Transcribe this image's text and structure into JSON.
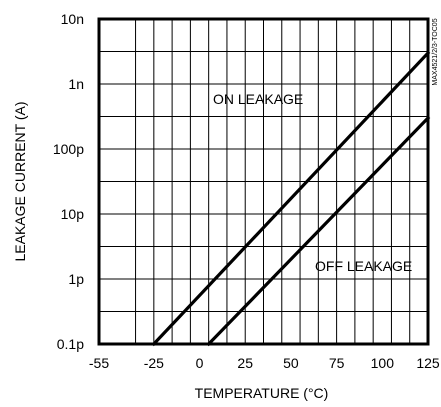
{
  "chart_data": {
    "type": "line",
    "xlabel": "TEMPERATURE (°C)",
    "ylabel": "LEAKAGE CURRENT (A)",
    "xlim": [
      -55,
      125
    ],
    "ylim": [
      1e-13,
      1e-08
    ],
    "yscale": "log",
    "grid": true,
    "x_ticks": [
      -55,
      -25,
      0,
      25,
      50,
      75,
      100,
      125
    ],
    "x_tick_labels": [
      "-55",
      "-25",
      "0",
      "25",
      "50",
      "75",
      "100",
      "125"
    ],
    "y_ticks": [
      1e-13,
      1e-12,
      1e-11,
      1e-10,
      1e-09,
      1e-08
    ],
    "y_tick_labels": [
      "0.1p",
      "1p",
      "10p",
      "100p",
      "1n",
      "10n"
    ],
    "series": [
      {
        "name": "ON LEAKAGE",
        "x": [
          -25,
          125
        ],
        "y": [
          1e-13,
          3e-09
        ]
      },
      {
        "name": "OFF LEAKAGE",
        "x": [
          5,
          125
        ],
        "y": [
          1e-13,
          3e-10
        ]
      }
    ],
    "annotations": [
      {
        "text": "ON LEAKAGE",
        "series": 0
      },
      {
        "text": "OFF LEAKAGE",
        "series": 1
      }
    ],
    "watermark": "MAX4521/2/3-TOC05"
  }
}
